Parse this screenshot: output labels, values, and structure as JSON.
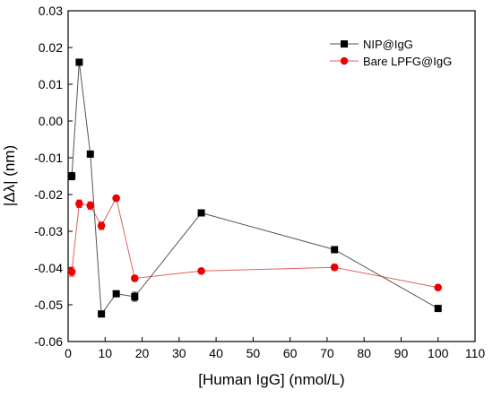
{
  "chart_data": {
    "type": "line",
    "xlabel": "[Human IgG] (nmol/L)",
    "ylabel": "|Δλ| (nm)",
    "xlim": [
      0,
      110
    ],
    "ylim": [
      -0.06,
      0.03
    ],
    "xticks": [
      0,
      10,
      20,
      30,
      40,
      50,
      60,
      70,
      80,
      90,
      100,
      110
    ],
    "yticks": [
      0.03,
      0.02,
      0.01,
      0.0,
      -0.01,
      -0.02,
      -0.03,
      -0.04,
      -0.05,
      -0.06
    ],
    "ytick_labels": [
      "0.03",
      "0.02",
      "0.01",
      "0.00",
      "-0.01",
      "-0.02",
      "-0.03",
      "-0.04",
      "-0.05",
      "-0.06"
    ],
    "grid": false,
    "legend_position": "top-right",
    "series": [
      {
        "name": "NIP@IgG",
        "color": "#000000",
        "line_color": "#555555",
        "marker": "square",
        "x": [
          1,
          3,
          6,
          9,
          13,
          18,
          36,
          72,
          100
        ],
        "y": [
          -0.015,
          0.016,
          -0.009,
          -0.0525,
          -0.047,
          -0.0478,
          -0.025,
          -0.035,
          -0.051
        ],
        "err": [
          0.001,
          0.0008,
          0.0006,
          0.0005,
          0.0005,
          0.0012,
          0.0008,
          0.0005,
          0.0005
        ]
      },
      {
        "name": "Bare LPFG@IgG",
        "color": "#ee0000",
        "line_color": "#e06060",
        "marker": "circle",
        "x": [
          1,
          3,
          6,
          9,
          13,
          18,
          36,
          72,
          100
        ],
        "y": [
          -0.041,
          -0.0225,
          -0.023,
          -0.0285,
          -0.021,
          -0.0428,
          -0.0408,
          -0.0398,
          -0.0453
        ],
        "err": [
          0.0012,
          0.001,
          0.001,
          0.001,
          0.0006,
          0.0008,
          0.0005,
          0.0008,
          0.0005
        ]
      }
    ]
  }
}
